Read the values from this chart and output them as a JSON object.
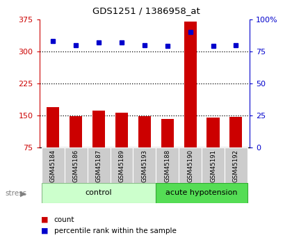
{
  "title": "GDS1251 / 1386958_at",
  "samples": [
    "GSM45184",
    "GSM45186",
    "GSM45187",
    "GSM45189",
    "GSM45193",
    "GSM45188",
    "GSM45190",
    "GSM45191",
    "GSM45192"
  ],
  "counts": [
    170,
    148,
    162,
    157,
    148,
    142,
    370,
    145,
    147
  ],
  "percentiles": [
    83,
    80,
    82,
    82,
    80,
    79,
    90,
    79,
    80
  ],
  "bar_color": "#cc0000",
  "dot_color": "#0000cc",
  "left_ylim": [
    75,
    375
  ],
  "left_yticks": [
    75,
    150,
    225,
    300,
    375
  ],
  "right_ylim": [
    0,
    100
  ],
  "right_yticks": [
    0,
    25,
    50,
    75,
    100
  ],
  "right_yticklabels": [
    "0",
    "25",
    "50",
    "75",
    "100%"
  ],
  "control_color": "#ccffcc",
  "acute_color": "#55dd55",
  "xlabel_gray_bg": "#cccccc",
  "gridline_vals": [
    150,
    225,
    300
  ],
  "bar_bottom": 75,
  "n_control": 5,
  "n_acute": 4
}
